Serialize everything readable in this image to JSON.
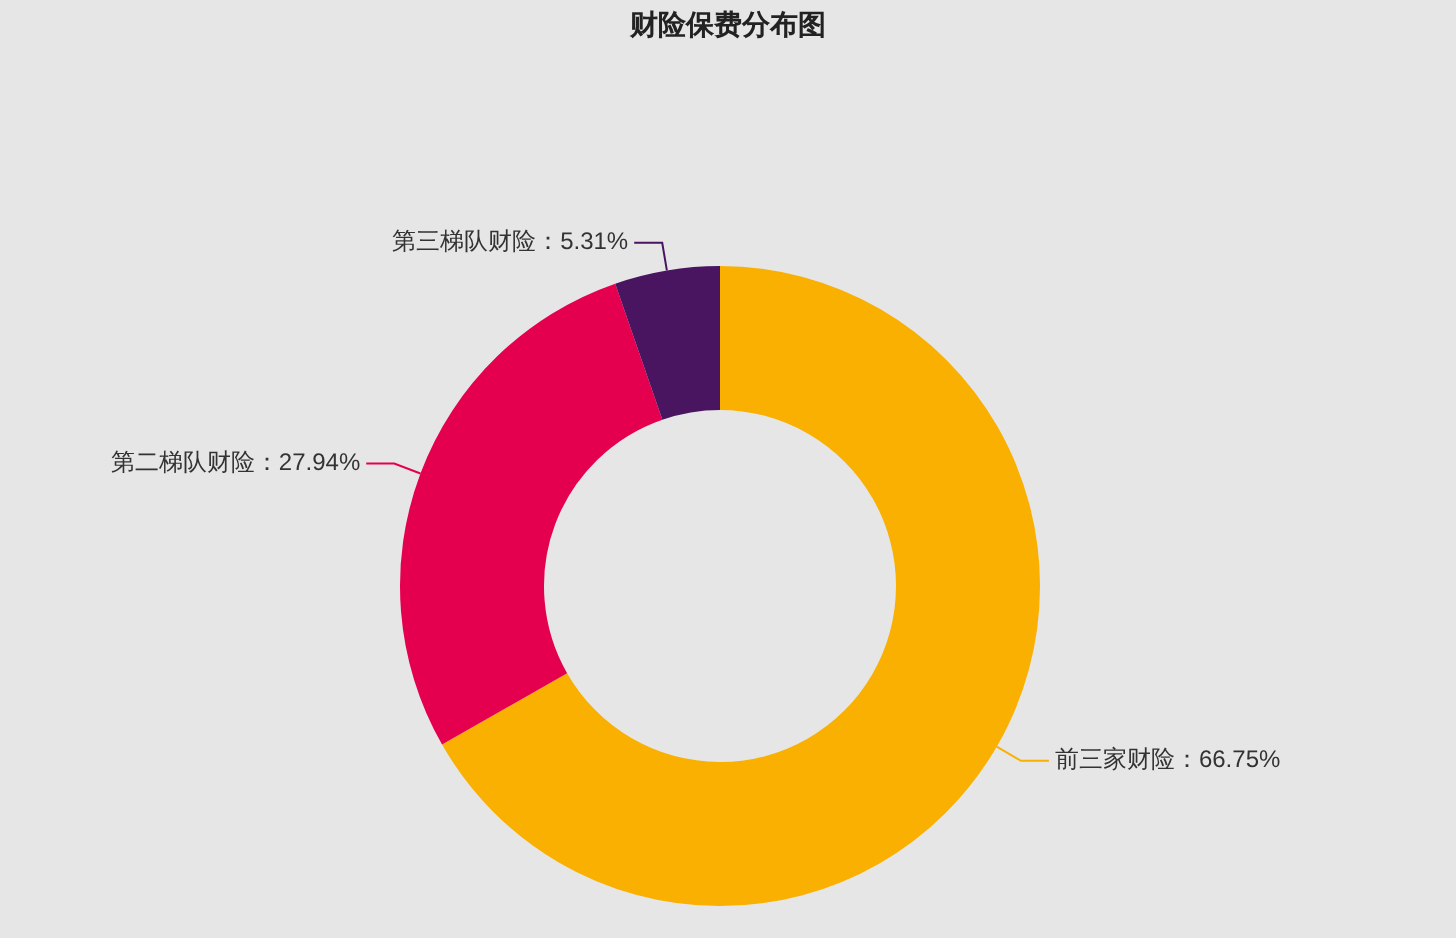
{
  "chart_data": {
    "type": "donut",
    "title": "财险保费分布图",
    "categories": [
      "前三家财险",
      "第二梯队财险",
      "第三梯队财险"
    ],
    "values": [
      66.75,
      27.94,
      5.31
    ],
    "value_labels": [
      "66.75%",
      "27.94%",
      "5.31%"
    ],
    "colors": [
      "#f9b000",
      "#e5004f",
      "#4a1560"
    ],
    "legend": false
  }
}
